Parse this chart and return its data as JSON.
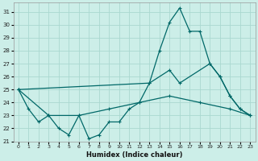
{
  "xlabel": "Humidex (Indice chaleur)",
  "bg_color": "#cceee8",
  "grid_color": "#aad8d0",
  "line_color": "#006868",
  "xlim": [
    -0.5,
    23.5
  ],
  "ylim": [
    21,
    31.7
  ],
  "yticks": [
    21,
    22,
    23,
    24,
    25,
    26,
    27,
    28,
    29,
    30,
    31
  ],
  "xticks": [
    0,
    1,
    2,
    3,
    4,
    5,
    6,
    7,
    8,
    9,
    10,
    11,
    12,
    13,
    14,
    15,
    16,
    17,
    18,
    19,
    20,
    21,
    22,
    23
  ],
  "series1": [
    [
      0,
      25.0
    ],
    [
      1,
      23.5
    ],
    [
      2,
      22.5
    ],
    [
      3,
      23.0
    ],
    [
      4,
      22.0
    ],
    [
      5,
      21.5
    ],
    [
      6,
      23.0
    ],
    [
      7,
      21.2
    ],
    [
      8,
      21.5
    ],
    [
      9,
      22.5
    ],
    [
      10,
      22.5
    ],
    [
      11,
      23.5
    ],
    [
      12,
      24.0
    ],
    [
      13,
      25.5
    ],
    [
      14,
      28.0
    ],
    [
      15,
      30.2
    ],
    [
      16,
      31.3
    ],
    [
      17,
      29.5
    ],
    [
      18,
      29.5
    ],
    [
      19,
      27.0
    ],
    [
      20,
      26.0
    ],
    [
      21,
      24.5
    ],
    [
      22,
      23.5
    ],
    [
      23,
      23.0
    ]
  ],
  "series2": [
    [
      0,
      25.0
    ],
    [
      13,
      25.5
    ],
    [
      15,
      26.5
    ],
    [
      16,
      25.5
    ],
    [
      19,
      27.0
    ],
    [
      20,
      26.0
    ],
    [
      21,
      24.5
    ],
    [
      22,
      23.5
    ],
    [
      23,
      23.0
    ]
  ],
  "series3": [
    [
      0,
      25.0
    ],
    [
      3,
      23.0
    ],
    [
      6,
      23.0
    ],
    [
      9,
      23.5
    ],
    [
      12,
      24.0
    ],
    [
      15,
      24.5
    ],
    [
      18,
      24.0
    ],
    [
      21,
      23.5
    ],
    [
      23,
      23.0
    ]
  ]
}
